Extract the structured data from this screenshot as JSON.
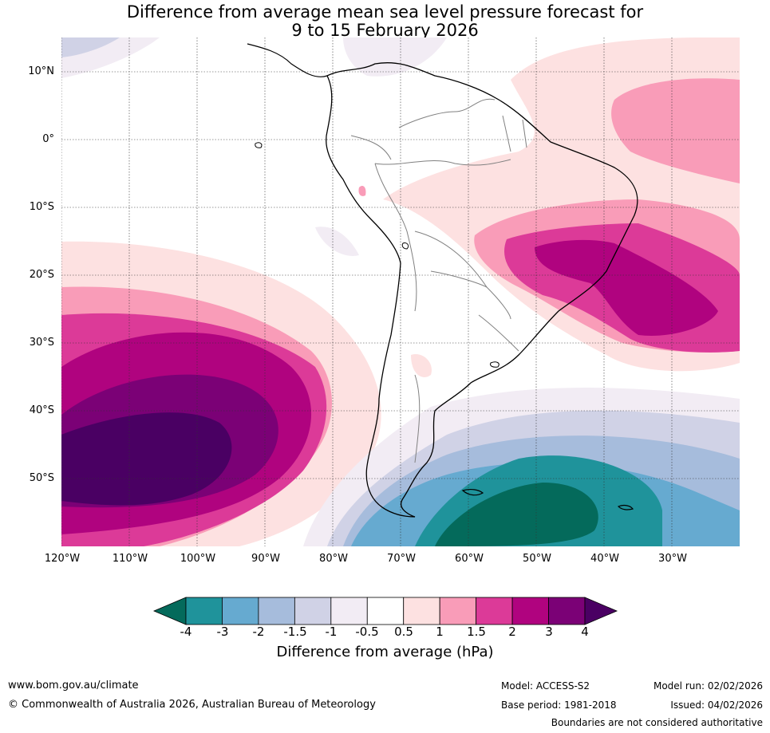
{
  "title": {
    "line1": "Difference from average mean sea level pressure forecast for",
    "line2": "9 to 15 February 2026"
  },
  "map": {
    "region": "South America",
    "lat_labels": [
      "10°N",
      "0°",
      "10°S",
      "20°S",
      "30°S",
      "40°S",
      "50°S"
    ],
    "lon_labels": [
      "120°W",
      "110°W",
      "100°W",
      "90°W",
      "80°W",
      "70°W",
      "60°W",
      "50°W",
      "40°W",
      "30°W"
    ]
  },
  "colorbar": {
    "label": "Difference from average (hPa)",
    "ticks": [
      "-4",
      "-3",
      "-2",
      "-1.5",
      "-1",
      "-0.5",
      "0.5",
      "1",
      "1.5",
      "2",
      "3",
      "4"
    ],
    "colors": {
      "below_min": "#046a5b",
      "bins": [
        "#1f939b",
        "#66aad0",
        "#a6bcdc",
        "#d0d2e6",
        "#f2ecf4",
        "#ffffff",
        "#fde1e1",
        "#f99cb8",
        "#dc3a98",
        "#b0037f",
        "#7b0176"
      ],
      "above_max": "#4a0063"
    }
  },
  "footer": {
    "url": "www.bom.gov.au/climate",
    "copyright": "© Commonwealth of Australia 2026, Australian Bureau of Meteorology",
    "model": "Model: ACCESS-S2",
    "base_period": "Base period: 1981-2018",
    "model_run": "Model run: 02/02/2026",
    "issued": "Issued: 04/02/2026",
    "disclaimer": "Boundaries are not considered authoritative"
  }
}
